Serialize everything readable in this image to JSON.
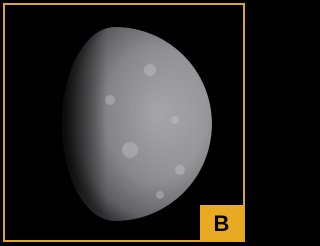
{
  "label": "B"
}
